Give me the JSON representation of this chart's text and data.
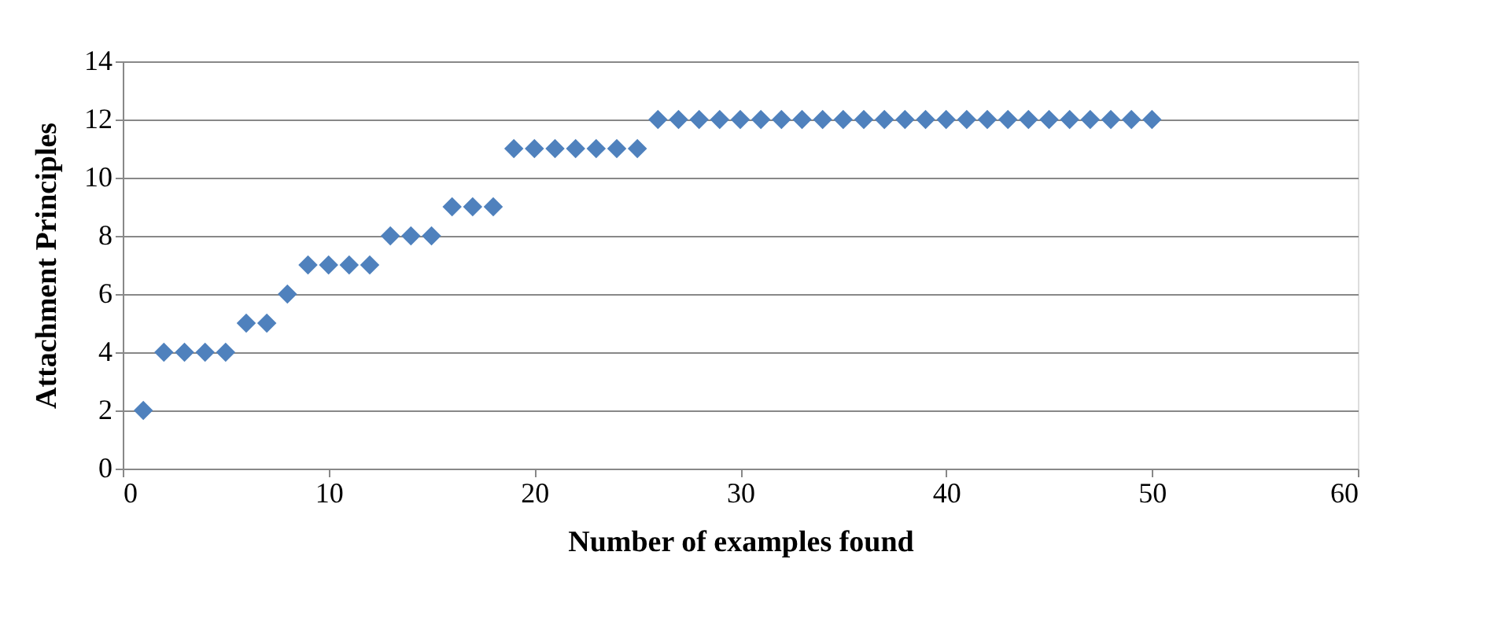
{
  "chart_data": {
    "type": "scatter",
    "xlabel": "Number of examples found",
    "ylabel": "Attachment  Principles",
    "x": [
      1,
      2,
      3,
      4,
      5,
      6,
      7,
      8,
      9,
      10,
      11,
      12,
      13,
      14,
      15,
      16,
      17,
      18,
      19,
      20,
      21,
      22,
      23,
      24,
      25,
      26,
      27,
      28,
      29,
      30,
      31,
      32,
      33,
      34,
      35,
      36,
      37,
      38,
      39,
      40,
      41,
      42,
      43,
      44,
      45,
      46,
      47,
      48,
      49,
      50
    ],
    "values": [
      2,
      4,
      4,
      4,
      4,
      5,
      5,
      6,
      7,
      7,
      7,
      7,
      8,
      8,
      8,
      9,
      9,
      9,
      11,
      11,
      11,
      11,
      11,
      11,
      11,
      12,
      12,
      12,
      12,
      12,
      12,
      12,
      12,
      12,
      12,
      12,
      12,
      12,
      12,
      12,
      12,
      12,
      12,
      12,
      12,
      12,
      12,
      12,
      12,
      12
    ],
    "color": "#4f81bd",
    "marker": "diamond",
    "xlim": [
      0,
      60
    ],
    "xticks": [
      0,
      10,
      20,
      30,
      40,
      50,
      60
    ],
    "ylim": [
      0,
      14
    ],
    "yticks": [
      0,
      2,
      4,
      6,
      8,
      10,
      12,
      14
    ],
    "grid": "y"
  }
}
